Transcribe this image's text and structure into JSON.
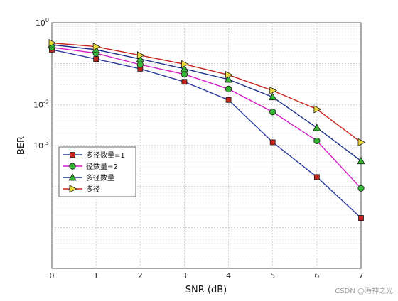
{
  "chart_data": {
    "type": "line",
    "xlabel": "SNR (dB)",
    "ylabel": "BER",
    "x": [
      0,
      1,
      2,
      3,
      4,
      5,
      6,
      7
    ],
    "xlim": [
      0,
      7
    ],
    "y_scale": "log",
    "ylim": [
      1e-06,
      1
    ],
    "y_ticks": [
      {
        "value": 1,
        "base": "10",
        "exp": "0"
      },
      {
        "value": 0.01,
        "base": "10",
        "exp": "-2"
      },
      {
        "value": 0.001,
        "base": "10",
        "exp": "-3"
      }
    ],
    "x_tick_labels": [
      "0",
      "1",
      "2",
      "3",
      "4",
      "5",
      "6",
      "7"
    ],
    "grid": true,
    "legend_position": "center-left",
    "series": [
      {
        "name": "多径数量=1",
        "color": "#2b3a9e",
        "marker": "square",
        "marker_color": "#c8241c",
        "values": [
          0.22,
          0.13,
          0.075,
          0.036,
          0.013,
          0.0012,
          0.00017,
          1.7e-05
        ]
      },
      {
        "name": "径数量=2",
        "color": "#d41cc8",
        "marker": "circle",
        "marker_color": "#34b534",
        "values": [
          0.25,
          0.18,
          0.095,
          0.055,
          0.024,
          0.0066,
          0.0013,
          9e-05
        ]
      },
      {
        "name": "多径数量",
        "color": "#1a2f86",
        "marker": "triangle",
        "marker_color": "#34b534",
        "values": [
          0.29,
          0.22,
          0.13,
          0.075,
          0.041,
          0.0153,
          0.0027,
          0.00042
        ]
      },
      {
        "name": "多径",
        "color": "#c8241c",
        "marker": "right-triangle",
        "marker_color": "#e8d83a",
        "values": [
          0.32,
          0.26,
          0.16,
          0.097,
          0.053,
          0.022,
          0.0077,
          0.0012
        ]
      }
    ]
  },
  "watermark": "CSDN @海神之光"
}
